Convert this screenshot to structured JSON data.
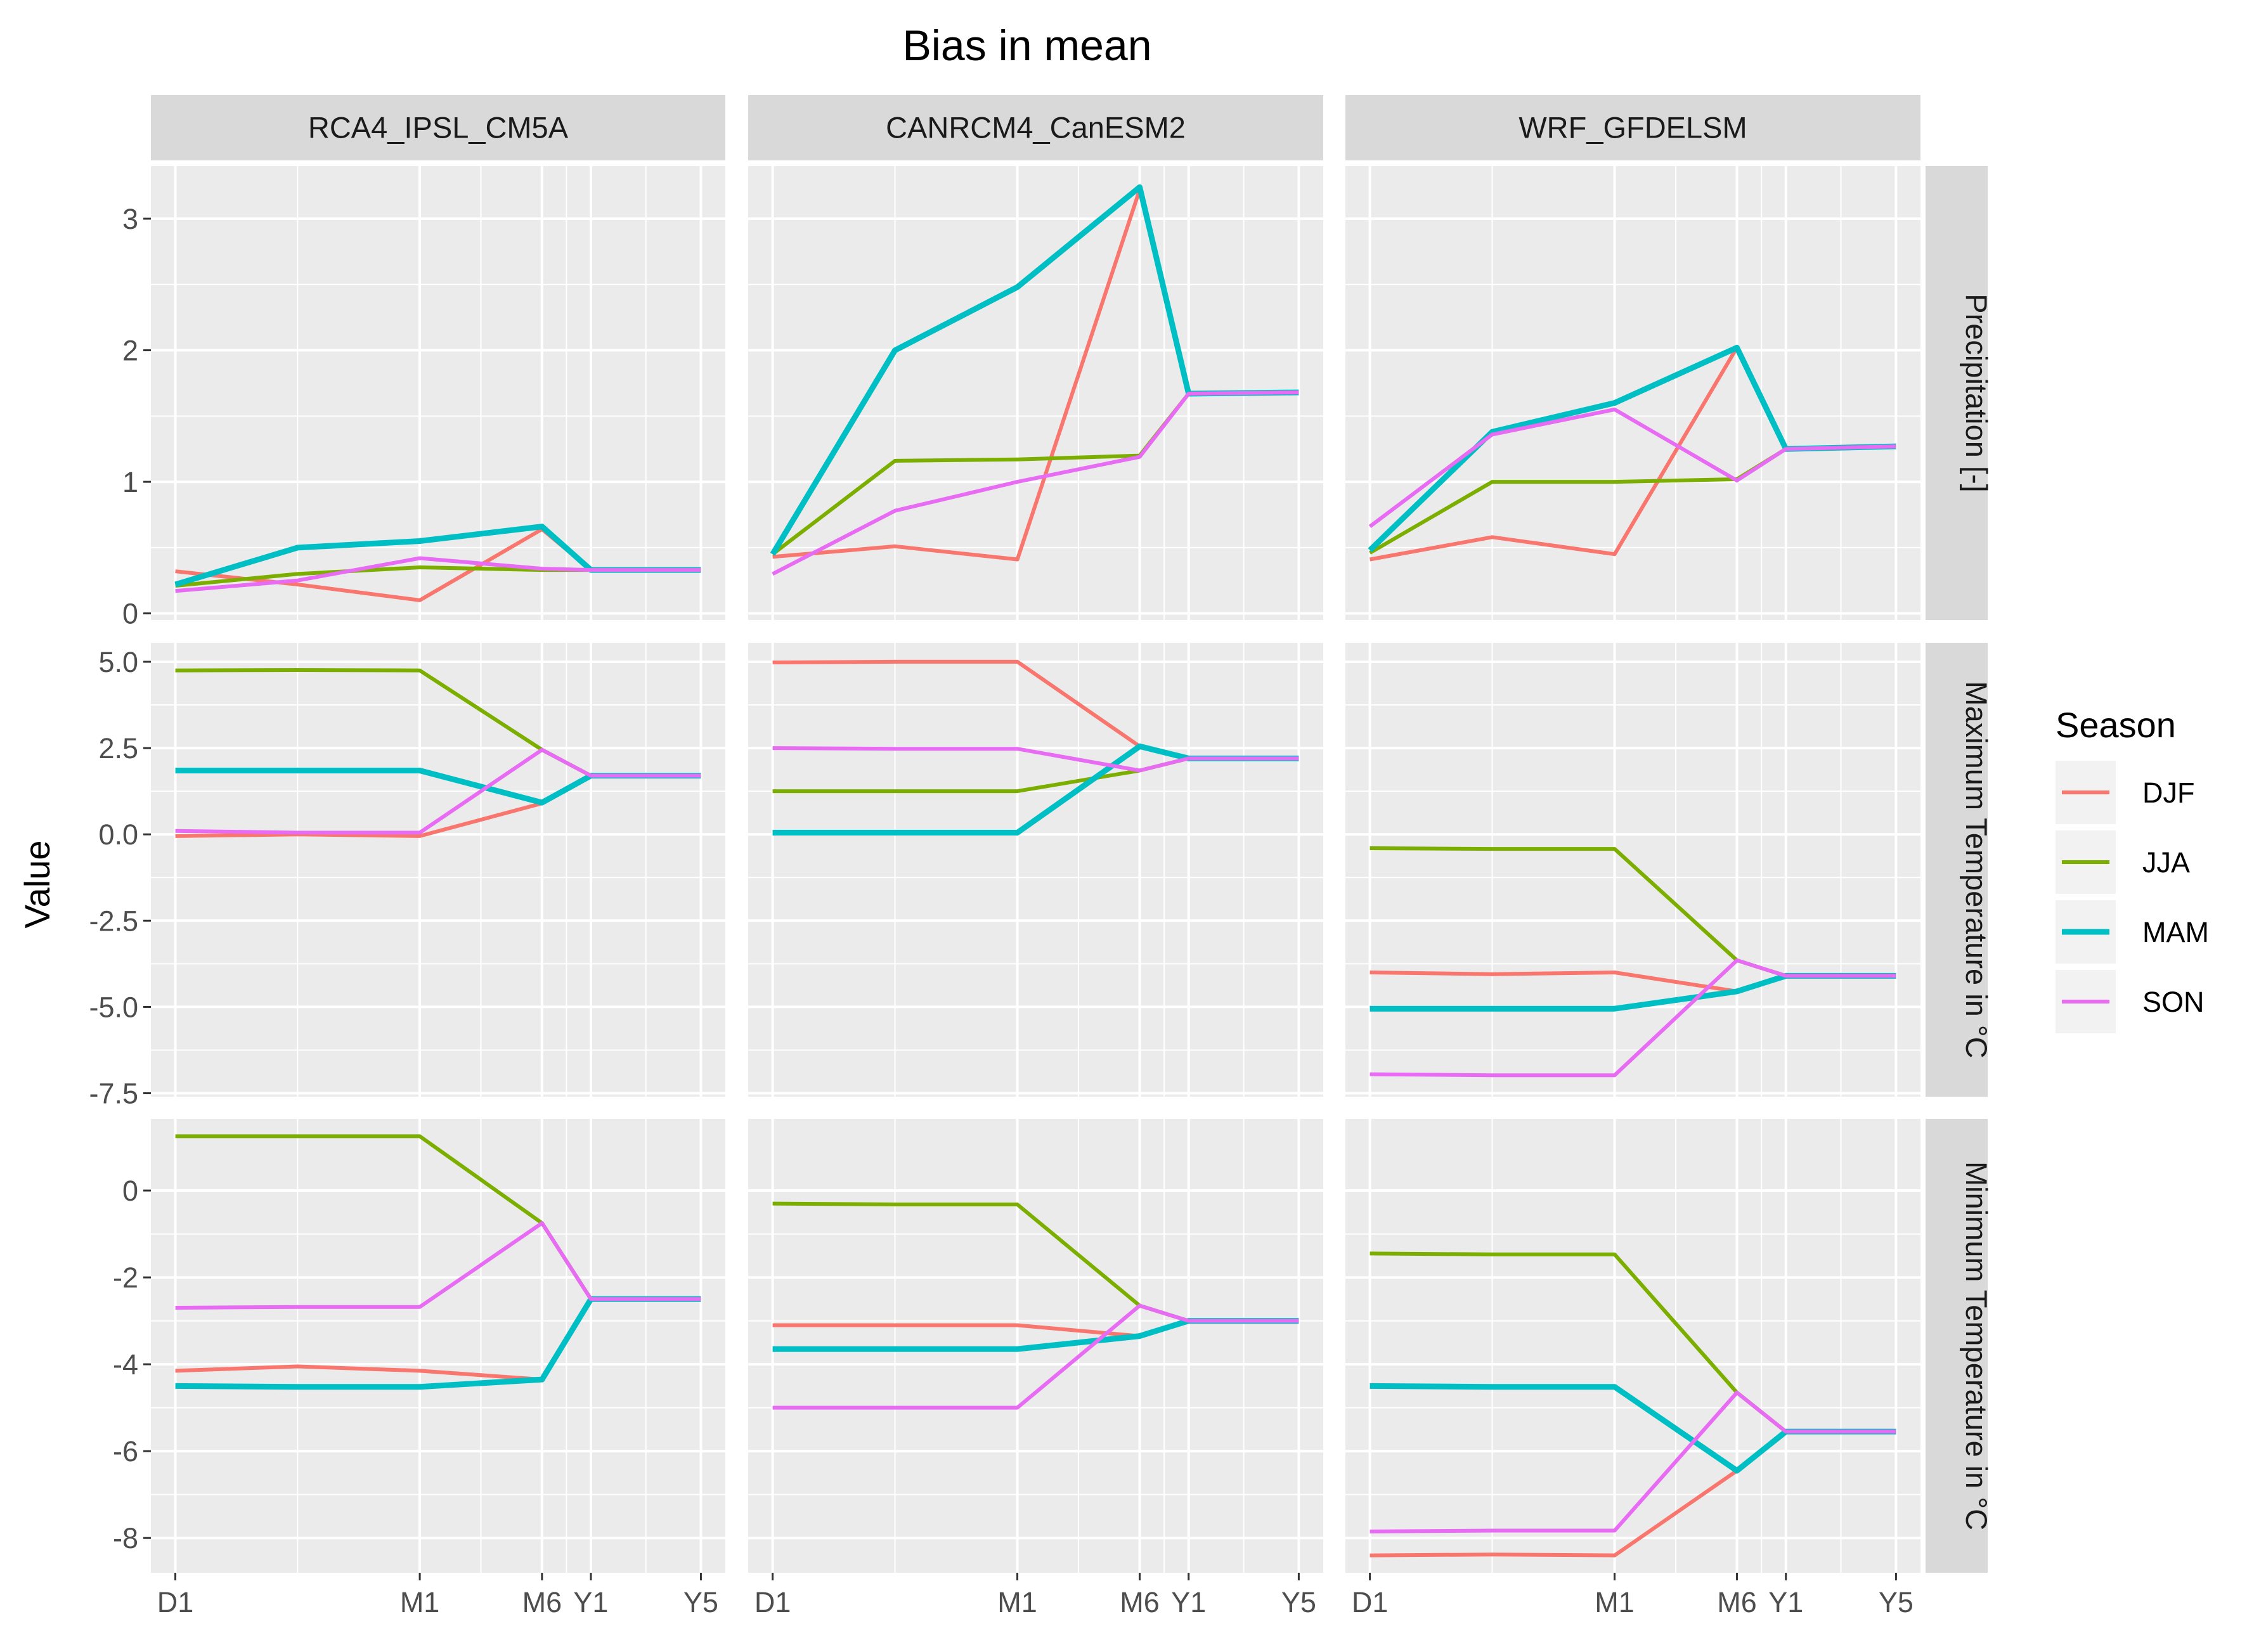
{
  "chart_data": {
    "type": "line",
    "title": "Bias in mean",
    "ylabel": "Value",
    "xlabel": "",
    "x_ticks": [
      "D1",
      "M1",
      "M6",
      "Y1",
      "Y5"
    ],
    "x_positions": [
      0,
      2,
      3,
      3.4,
      4.3
    ],
    "x_limits": [
      -0.2,
      4.5
    ],
    "models": [
      "RCA4_IPSL_CM5A",
      "CANRCM4_CanESM2",
      "WRF_GFDELSM"
    ],
    "variables": [
      {
        "label": "Precipitation [-]",
        "ylim": [
          -0.05,
          3.4
        ],
        "yticks": [
          0,
          1,
          2,
          3
        ],
        "ytick_labels": [
          "0",
          "1",
          "2",
          "3"
        ]
      },
      {
        "label": "Maximum Temperature in °C",
        "ylim": [
          -7.6,
          5.55
        ],
        "yticks": [
          -7.5,
          -5,
          -2.5,
          0,
          2.5,
          5
        ],
        "ytick_labels": [
          "-7.5",
          "-5.0",
          "-2.5",
          "0.0",
          "2.5",
          "5.0"
        ]
      },
      {
        "label": "Minimum Temperature in °C",
        "ylim": [
          -8.8,
          1.65
        ],
        "yticks": [
          -8,
          -6,
          -4,
          -2,
          0
        ],
        "ytick_labels": [
          "-8",
          "-6",
          "-4",
          "-2",
          "0"
        ]
      }
    ],
    "legend": {
      "title": "Season",
      "position": "right",
      "entries": [
        {
          "name": "DJF",
          "color": "#F8766D"
        },
        {
          "name": "JJA",
          "color": "#7CAE00"
        },
        {
          "name": "MAM",
          "color": "#00BFC4"
        },
        {
          "name": "SON",
          "color": "#E76BF3"
        }
      ]
    },
    "series_x": [
      0,
      1,
      2,
      3,
      3.4,
      4.3
    ],
    "panels": [
      {
        "model": "RCA4_IPSL_CM5A",
        "variable": "Precipitation [-]",
        "series": {
          "DJF": [
            0.32,
            0.22,
            0.1,
            0.64,
            0.33,
            0.33
          ],
          "JJA": [
            0.21,
            0.3,
            0.35,
            0.33,
            0.33,
            0.33
          ],
          "MAM": [
            0.22,
            0.5,
            0.55,
            0.66,
            0.33,
            0.33
          ],
          "SON": [
            0.17,
            0.25,
            0.42,
            0.34,
            0.33,
            0.33
          ]
        }
      },
      {
        "model": "CANRCM4_CanESM2",
        "variable": "Precipitation [-]",
        "series": {
          "DJF": [
            0.43,
            0.51,
            0.41,
            3.22,
            1.67,
            1.68
          ],
          "JJA": [
            0.45,
            1.16,
            1.17,
            1.2,
            1.67,
            1.68
          ],
          "MAM": [
            0.45,
            2.0,
            2.48,
            3.24,
            1.67,
            1.68
          ],
          "SON": [
            0.3,
            0.78,
            1.0,
            1.19,
            1.67,
            1.68
          ]
        }
      },
      {
        "model": "WRF_GFDELSM",
        "variable": "Precipitation [-]",
        "series": {
          "DJF": [
            0.41,
            0.58,
            0.45,
            2.02,
            1.25,
            1.27
          ],
          "JJA": [
            0.46,
            1.0,
            1.0,
            1.02,
            1.25,
            1.27
          ],
          "MAM": [
            0.48,
            1.38,
            1.6,
            2.02,
            1.25,
            1.27
          ],
          "SON": [
            0.66,
            1.36,
            1.55,
            1.01,
            1.25,
            1.27
          ]
        }
      },
      {
        "model": "RCA4_IPSL_CM5A",
        "variable": "Maximum Temperature in °C",
        "series": {
          "DJF": [
            -0.05,
            0.0,
            -0.05,
            0.9,
            1.7,
            1.7
          ],
          "JJA": [
            4.75,
            4.76,
            4.75,
            2.45,
            1.7,
            1.7
          ],
          "MAM": [
            1.85,
            1.85,
            1.85,
            0.92,
            1.7,
            1.7
          ],
          "SON": [
            0.1,
            0.05,
            0.05,
            2.45,
            1.7,
            1.7
          ]
        }
      },
      {
        "model": "CANRCM4_CanESM2",
        "variable": "Maximum Temperature in °C",
        "series": {
          "DJF": [
            4.98,
            5.0,
            5.0,
            2.55,
            2.2,
            2.2
          ],
          "JJA": [
            1.25,
            1.25,
            1.25,
            1.85,
            2.2,
            2.2
          ],
          "MAM": [
            0.05,
            0.05,
            0.05,
            2.55,
            2.2,
            2.2
          ],
          "SON": [
            2.5,
            2.48,
            2.48,
            1.85,
            2.2,
            2.2
          ]
        }
      },
      {
        "model": "WRF_GFDELSM",
        "variable": "Maximum Temperature in °C",
        "series": {
          "DJF": [
            -4.0,
            -4.05,
            -4.0,
            -4.55,
            -4.1,
            -4.1
          ],
          "JJA": [
            -0.4,
            -0.42,
            -0.42,
            -3.65,
            -4.1,
            -4.1
          ],
          "MAM": [
            -5.05,
            -5.05,
            -5.05,
            -4.55,
            -4.1,
            -4.1
          ],
          "SON": [
            -6.95,
            -6.98,
            -6.98,
            -3.65,
            -4.1,
            -4.1
          ]
        }
      },
      {
        "model": "RCA4_IPSL_CM5A",
        "variable": "Minimum Temperature in °C",
        "series": {
          "DJF": [
            -4.15,
            -4.05,
            -4.15,
            -4.35,
            -2.5,
            -2.5
          ],
          "JJA": [
            1.25,
            1.25,
            1.25,
            -0.75,
            -2.5,
            -2.5
          ],
          "MAM": [
            -4.5,
            -4.52,
            -4.52,
            -4.35,
            -2.5,
            -2.5
          ],
          "SON": [
            -2.7,
            -2.68,
            -2.68,
            -0.75,
            -2.5,
            -2.5
          ]
        }
      },
      {
        "model": "CANRCM4_CanESM2",
        "variable": "Minimum Temperature in °C",
        "series": {
          "DJF": [
            -3.1,
            -3.1,
            -3.1,
            -3.35,
            -3.0,
            -3.0
          ],
          "JJA": [
            -0.3,
            -0.32,
            -0.32,
            -2.65,
            -3.0,
            -3.0
          ],
          "MAM": [
            -3.65,
            -3.65,
            -3.65,
            -3.35,
            -3.0,
            -3.0
          ],
          "SON": [
            -5.0,
            -5.0,
            -5.0,
            -2.65,
            -3.0,
            -3.0
          ]
        }
      },
      {
        "model": "WRF_GFDELSM",
        "variable": "Minimum Temperature in °C",
        "series": {
          "DJF": [
            -8.4,
            -8.38,
            -8.4,
            -6.45,
            -5.55,
            -5.55
          ],
          "JJA": [
            -1.45,
            -1.47,
            -1.47,
            -4.65,
            -5.55,
            -5.55
          ],
          "MAM": [
            -4.5,
            -4.52,
            -4.52,
            -6.45,
            -5.55,
            -5.55
          ],
          "SON": [
            -7.85,
            -7.83,
            -7.83,
            -4.65,
            -5.55,
            -5.55
          ]
        }
      }
    ]
  }
}
